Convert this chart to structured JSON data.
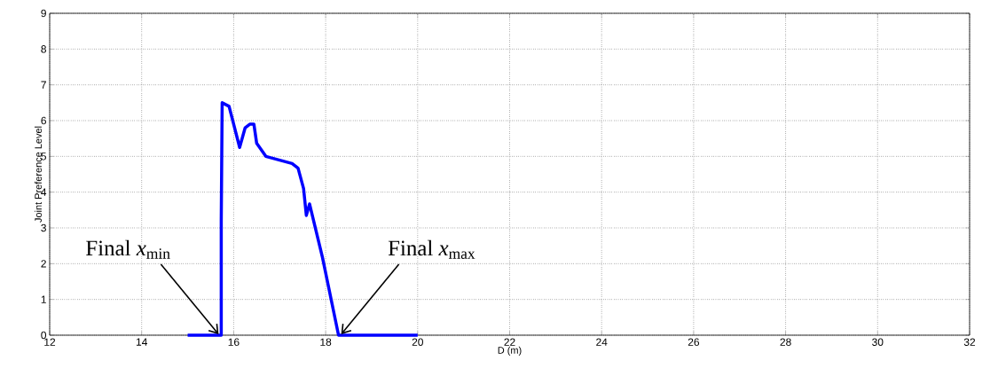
{
  "chart_data": {
    "type": "line",
    "xlabel": "D (m)",
    "ylabel": "Joint Preference Level",
    "x": [
      15.0,
      15.73,
      15.73,
      15.75,
      15.9,
      16.13,
      16.25,
      16.35,
      16.44,
      16.5,
      16.7,
      17.27,
      17.4,
      17.52,
      17.58,
      17.65,
      17.71,
      17.93,
      18.28,
      20.0
    ],
    "series": [
      {
        "color": "#0000ff",
        "values": [
          0,
          0,
          3.2,
          6.5,
          6.4,
          5.25,
          5.8,
          5.9,
          5.9,
          5.37,
          5.0,
          4.8,
          4.67,
          4.1,
          3.35,
          3.67,
          3.35,
          2.18,
          0,
          0
        ]
      }
    ],
    "xlim": [
      12,
      32
    ],
    "xticks": [
      12,
      14,
      16,
      18,
      20,
      22,
      24,
      26,
      28,
      30,
      32
    ],
    "ylim": [
      0,
      9
    ],
    "yticks": [
      0,
      1,
      2,
      3,
      4,
      5,
      6,
      7,
      8,
      9
    ],
    "grid": true,
    "line_style": "solid",
    "marker": "none",
    "annotations": [
      {
        "text": "Final *x*$_{min}$",
        "x": 15.73,
        "y": 0
      },
      {
        "text": "Final *x*$_{max}$",
        "x": 18.28,
        "y": 0
      }
    ]
  }
}
